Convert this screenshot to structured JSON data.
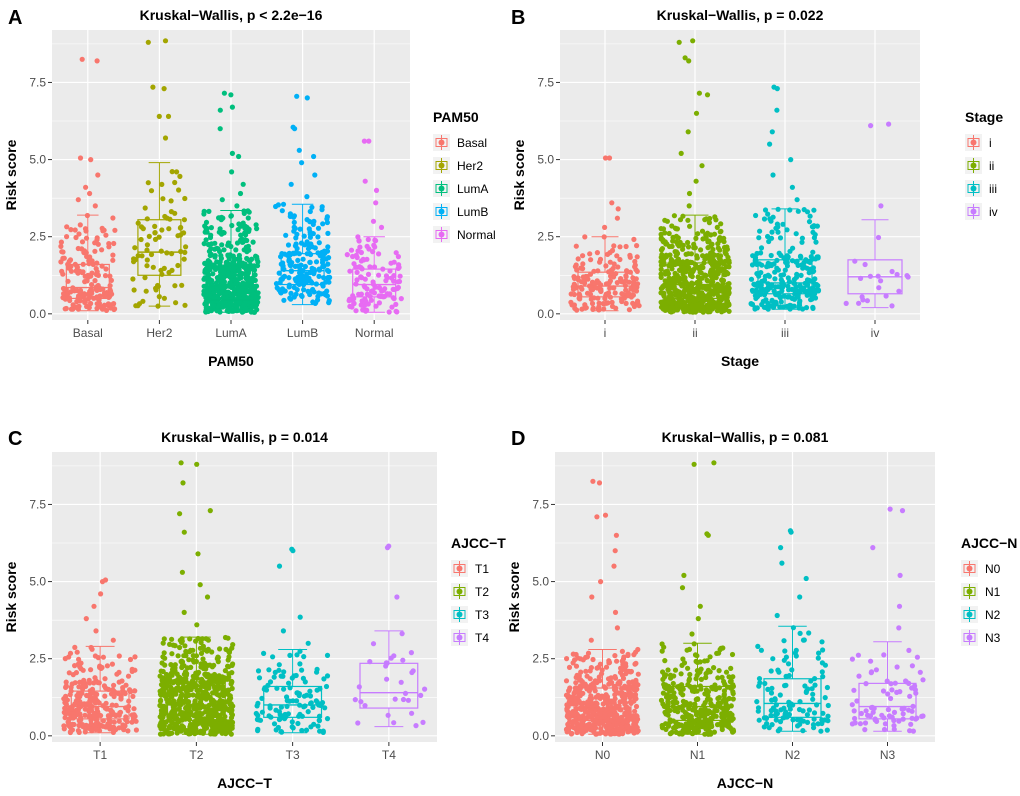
{
  "colors": {
    "panel_bg": "#EBEBEB",
    "grid": "#FFFFFF",
    "text": "#000000",
    "axis_text": "#4D4D4D",
    "groups": [
      "#F8766D",
      "#A3A500",
      "#00BF7D",
      "#00B0F6",
      "#E76BF3"
    ],
    "groups4": [
      "#F8766D",
      "#7CAE00",
      "#00BFC4",
      "#C77CFF"
    ]
  },
  "chart_data": [
    {
      "panel_label": "A",
      "type": "box",
      "title": "Kruskal−Wallis, p < 2.2e−16",
      "xlabel": "PAM50",
      "ylabel": "Risk score",
      "legend_title": "PAM50",
      "legend_position": "right",
      "ylim": [
        -0.2,
        9.2
      ],
      "yticks": [
        0.0,
        2.5,
        5.0,
        7.5
      ],
      "ytick_labels": [
        "0.0",
        "2.5",
        "5.0",
        "7.5"
      ],
      "categories": [
        "Basal",
        "Her2",
        "LumA",
        "LumB",
        "Normal"
      ],
      "boxes": [
        {
          "min": 0.1,
          "q1": 0.5,
          "median": 0.85,
          "q3": 1.6,
          "max": 3.2,
          "n": 180,
          "outliers": [
            3.5,
            3.7,
            3.9,
            4.1,
            4.5,
            5.0,
            5.05,
            8.2,
            8.25
          ]
        },
        {
          "min": 0.25,
          "q1": 1.25,
          "median": 2.0,
          "q3": 3.05,
          "max": 4.9,
          "n": 80,
          "outliers": [
            5.7,
            6.4,
            6.4,
            7.3,
            7.35,
            8.8,
            8.85
          ]
        },
        {
          "min": 0.05,
          "q1": 0.45,
          "median": 0.9,
          "q3": 1.55,
          "max": 3.35,
          "n": 520,
          "outliers": [
            3.5,
            3.7,
            3.9,
            4.2,
            4.6,
            5.1,
            5.2,
            6.0,
            6.6,
            6.7,
            7.1,
            7.15
          ]
        },
        {
          "min": 0.3,
          "q1": 0.95,
          "median": 1.4,
          "q3": 1.95,
          "max": 3.55,
          "n": 190,
          "outliers": [
            3.8,
            4.2,
            4.5,
            4.9,
            5.1,
            5.3,
            6.0,
            6.05,
            7.0,
            7.05
          ]
        },
        {
          "min": 0.05,
          "q1": 0.55,
          "median": 0.95,
          "q3": 1.45,
          "max": 2.5,
          "n": 120,
          "outliers": [
            2.8,
            3.0,
            3.6,
            4.0,
            4.3,
            5.6,
            5.6
          ]
        }
      ]
    },
    {
      "panel_label": "B",
      "type": "box",
      "title": "Kruskal−Wallis, p = 0.022",
      "xlabel": "Stage",
      "ylabel": "Risk score",
      "legend_title": "Stage",
      "legend_position": "right",
      "ylim": [
        -0.2,
        9.2
      ],
      "yticks": [
        0.0,
        2.5,
        5.0,
        7.5
      ],
      "ytick_labels": [
        "0.0",
        "2.5",
        "5.0",
        "7.5"
      ],
      "categories": [
        "i",
        "ii",
        "iii",
        "iv"
      ],
      "boxes": [
        {
          "min": 0.1,
          "q1": 0.55,
          "median": 0.9,
          "q3": 1.35,
          "max": 2.5,
          "n": 180,
          "outliers": [
            2.8,
            3.1,
            3.4,
            3.6,
            5.05,
            5.05
          ]
        },
        {
          "min": 0.05,
          "q1": 0.5,
          "median": 0.95,
          "q3": 1.65,
          "max": 3.2,
          "n": 600,
          "outliers": [
            3.5,
            3.9,
            4.3,
            4.8,
            5.2,
            5.9,
            6.5,
            7.1,
            7.15,
            8.2,
            8.3,
            8.8,
            8.85
          ]
        },
        {
          "min": 0.15,
          "q1": 0.65,
          "median": 1.0,
          "q3": 1.75,
          "max": 3.4,
          "n": 260,
          "outliers": [
            3.7,
            4.1,
            4.5,
            5.0,
            5.5,
            5.9,
            6.6,
            7.3,
            7.35
          ]
        },
        {
          "min": 0.2,
          "q1": 0.65,
          "median": 1.2,
          "q3": 1.75,
          "max": 3.05,
          "n": 20,
          "outliers": [
            3.5,
            6.1,
            6.15
          ]
        }
      ]
    },
    {
      "panel_label": "C",
      "type": "box",
      "title": "Kruskal−Wallis, p = 0.014",
      "xlabel": "AJCC−T",
      "ylabel": "Risk score",
      "legend_title": "AJCC−T",
      "legend_position": "right",
      "ylim": [
        -0.2,
        9.2
      ],
      "yticks": [
        0.0,
        2.5,
        5.0,
        7.5
      ],
      "ytick_labels": [
        "0.0",
        "2.5",
        "5.0",
        "7.5"
      ],
      "categories": [
        "T1",
        "T2",
        "T3",
        "T4"
      ],
      "boxes": [
        {
          "min": 0.1,
          "q1": 0.55,
          "median": 0.95,
          "q3": 1.45,
          "max": 2.9,
          "n": 280,
          "outliers": [
            3.1,
            3.4,
            3.8,
            4.2,
            4.6,
            5.0,
            5.05
          ]
        },
        {
          "min": 0.05,
          "q1": 0.5,
          "median": 1.0,
          "q3": 1.75,
          "max": 3.2,
          "n": 650,
          "outliers": [
            3.6,
            4.0,
            4.5,
            4.9,
            5.3,
            5.9,
            6.6,
            7.2,
            7.3,
            8.2,
            8.8,
            8.85
          ]
        },
        {
          "min": 0.1,
          "q1": 0.6,
          "median": 1.0,
          "q3": 1.6,
          "max": 2.8,
          "n": 120,
          "outliers": [
            3.0,
            3.4,
            3.85,
            5.5,
            6.0,
            6.05
          ]
        },
        {
          "min": 0.3,
          "q1": 0.9,
          "median": 1.4,
          "q3": 2.35,
          "max": 3.4,
          "n": 30,
          "outliers": [
            4.5,
            6.1,
            6.15
          ]
        }
      ]
    },
    {
      "panel_label": "D",
      "type": "box",
      "title": "Kruskal−Wallis, p = 0.081",
      "xlabel": "AJCC−N",
      "ylabel": "Risk score",
      "legend_title": "AJCC−N",
      "legend_position": "right",
      "ylim": [
        -0.2,
        9.2
      ],
      "yticks": [
        0.0,
        2.5,
        5.0,
        7.5
      ],
      "ytick_labels": [
        "0.0",
        "2.5",
        "5.0",
        "7.5"
      ],
      "categories": [
        "N0",
        "N1",
        "N2",
        "N3"
      ],
      "boxes": [
        {
          "min": 0.05,
          "q1": 0.5,
          "median": 0.9,
          "q3": 1.55,
          "max": 2.8,
          "n": 500,
          "outliers": [
            3.1,
            3.5,
            4.0,
            4.5,
            5.0,
            5.5,
            6.0,
            6.5,
            7.1,
            7.15,
            8.2,
            8.25
          ]
        },
        {
          "min": 0.05,
          "q1": 0.5,
          "median": 0.95,
          "q3": 1.6,
          "max": 3.0,
          "n": 350,
          "outliers": [
            3.3,
            3.8,
            4.2,
            4.8,
            5.2,
            6.5,
            6.55,
            8.8,
            8.85
          ]
        },
        {
          "min": 0.15,
          "q1": 0.6,
          "median": 1.05,
          "q3": 1.85,
          "max": 3.55,
          "n": 120,
          "outliers": [
            3.9,
            4.5,
            5.1,
            5.6,
            6.1,
            6.6,
            6.65
          ]
        },
        {
          "min": 0.15,
          "q1": 0.55,
          "median": 0.95,
          "q3": 1.7,
          "max": 3.05,
          "n": 80,
          "outliers": [
            3.5,
            4.2,
            5.2,
            6.1,
            7.3,
            7.35
          ]
        }
      ]
    }
  ]
}
